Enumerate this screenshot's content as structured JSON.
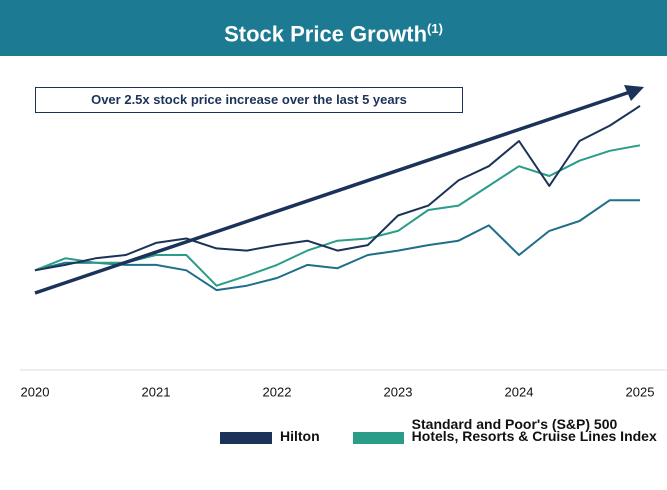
{
  "chart_data": {
    "type": "line",
    "title": "Stock Price Growth",
    "title_note": "(1)",
    "annotation": "Over 2.5x stock price increase over the last 5 years",
    "x": [
      2020,
      2020.25,
      2020.5,
      2020.75,
      2021,
      2021.25,
      2021.5,
      2021.75,
      2022,
      2022.25,
      2022.5,
      2022.75,
      2023,
      2023.25,
      2023.5,
      2023.75,
      2024,
      2024.25,
      2024.5,
      2024.75,
      2025
    ],
    "xlim": [
      2020,
      2025
    ],
    "xticks": [
      2020,
      2021,
      2022,
      2023,
      2024,
      2025
    ],
    "ylim": [
      0,
      290
    ],
    "series": [
      {
        "name": "Hilton",
        "color": "#1b3358",
        "values": [
          100,
          105,
          111,
          114,
          125,
          129,
          120,
          118,
          123,
          127,
          118,
          123,
          150,
          159,
          182,
          195,
          218,
          177,
          218,
          232,
          250
        ]
      },
      {
        "name": "Standard and Poor's (S&P) 500 Hotels, Resorts & Cruise Lines Index",
        "color": "#2a9d88",
        "values": [
          100,
          111,
          107,
          107,
          114,
          114,
          86,
          95,
          105,
          118,
          127,
          129,
          136,
          155,
          159,
          177,
          195,
          186,
          200,
          209,
          214
        ]
      },
      {
        "color": "#1f6f8b",
        "values": [
          100,
          107,
          107,
          105,
          105,
          100,
          82,
          86,
          93,
          105,
          102,
          114,
          118,
          123,
          127,
          141,
          114,
          136,
          145,
          164,
          164
        ]
      }
    ]
  }
}
